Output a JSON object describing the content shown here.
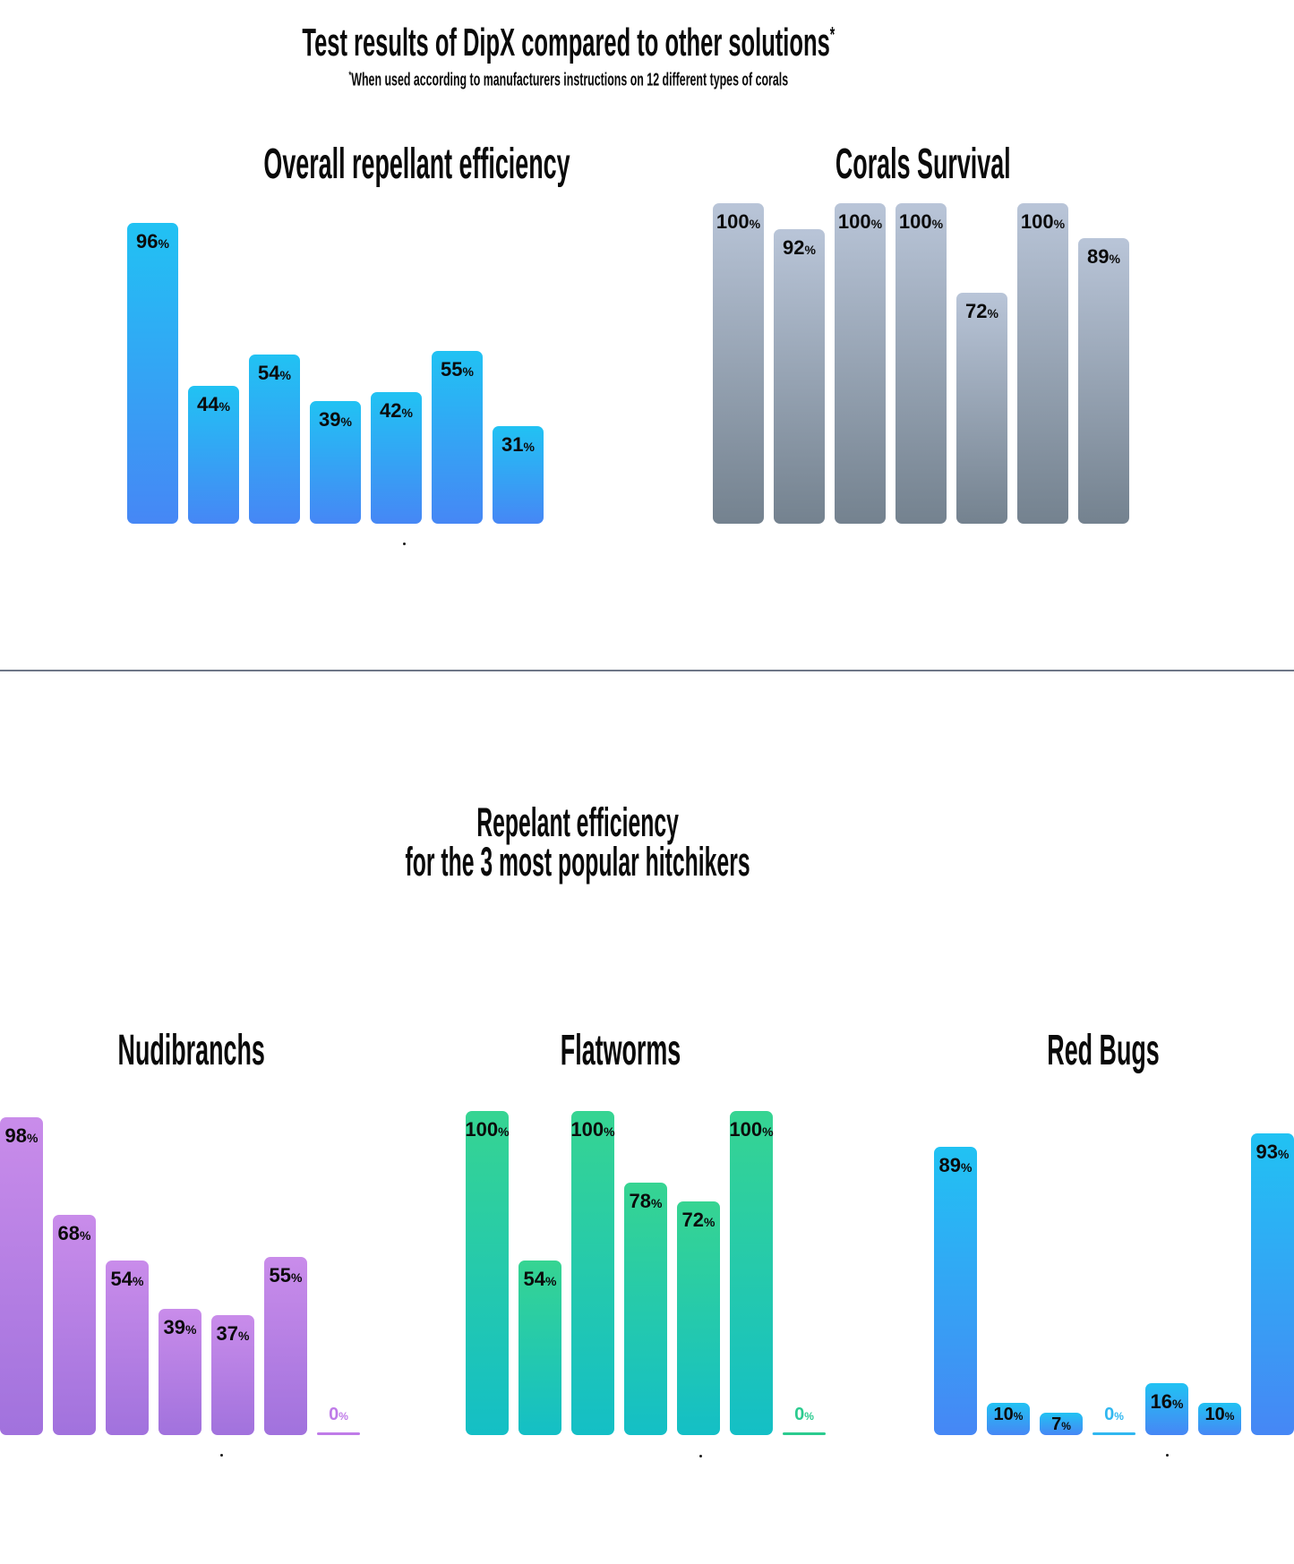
{
  "page": {
    "title": "Test results of DipX compared to other solutions",
    "title_asterisk": "*",
    "subtitle_asterisk": "*",
    "subtitle": "When used according to manufacturers instructions on 12 different types of corals",
    "section2_title_line1": "Repelant efficiency",
    "section2_title_line2": "for the 3 most popular hitchikers"
  },
  "colors": {
    "background": "#ffffff",
    "text": "#0a0a0a",
    "divider": "#6e7687",
    "palettes": {
      "blue": {
        "top": "#21C2F3",
        "bottom": "#4687F5",
        "zero": "#30B7F0"
      },
      "gray": {
        "top": "#B9C5D8",
        "bottom": "#74828F",
        "zero": "#9AA7B8"
      },
      "purple": {
        "top": "#C98CEA",
        "bottom": "#A172DD",
        "zero": "#BF7BE8"
      },
      "green": {
        "top": "#36D492",
        "bottom": "#14BFC6",
        "zero": "#2BCB8F"
      }
    }
  },
  "chart_data": [
    {
      "id": "overall-repellant-efficiency",
      "type": "bar",
      "title": "Overall repellant efficiency",
      "unit": "%",
      "values": [
        96,
        44,
        54,
        39,
        42,
        55,
        31
      ],
      "palette": "blue",
      "ylim": [
        0,
        100
      ],
      "grid": false,
      "legend": "none",
      "value_labels": "inside-top"
    },
    {
      "id": "corals-survival",
      "type": "bar",
      "title": "Corals Survival",
      "unit": "%",
      "values": [
        100,
        92,
        100,
        100,
        72,
        100,
        89
      ],
      "palette": "gray",
      "ylim": [
        0,
        100
      ],
      "grid": false,
      "legend": "none",
      "value_labels": "inside-top"
    },
    {
      "id": "nudibranchs",
      "type": "bar",
      "title": "Nudibranchs",
      "unit": "%",
      "values": [
        98,
        68,
        54,
        39,
        37,
        55,
        0
      ],
      "palette": "purple",
      "ylim": [
        0,
        100
      ],
      "grid": false,
      "legend": "none",
      "value_labels": "inside-top"
    },
    {
      "id": "flatworms",
      "type": "bar",
      "title": "Flatworms",
      "unit": "%",
      "values": [
        100,
        54,
        100,
        78,
        72,
        100,
        0
      ],
      "palette": "green",
      "ylim": [
        0,
        100
      ],
      "grid": false,
      "legend": "none",
      "value_labels": "inside-top"
    },
    {
      "id": "red-bugs",
      "type": "bar",
      "title": "Red Bugs",
      "unit": "%",
      "values": [
        89,
        10,
        7,
        0,
        16,
        10,
        93
      ],
      "palette": "blue",
      "ylim": [
        0,
        100
      ],
      "grid": false,
      "legend": "none",
      "value_labels": "inside-top"
    }
  ]
}
